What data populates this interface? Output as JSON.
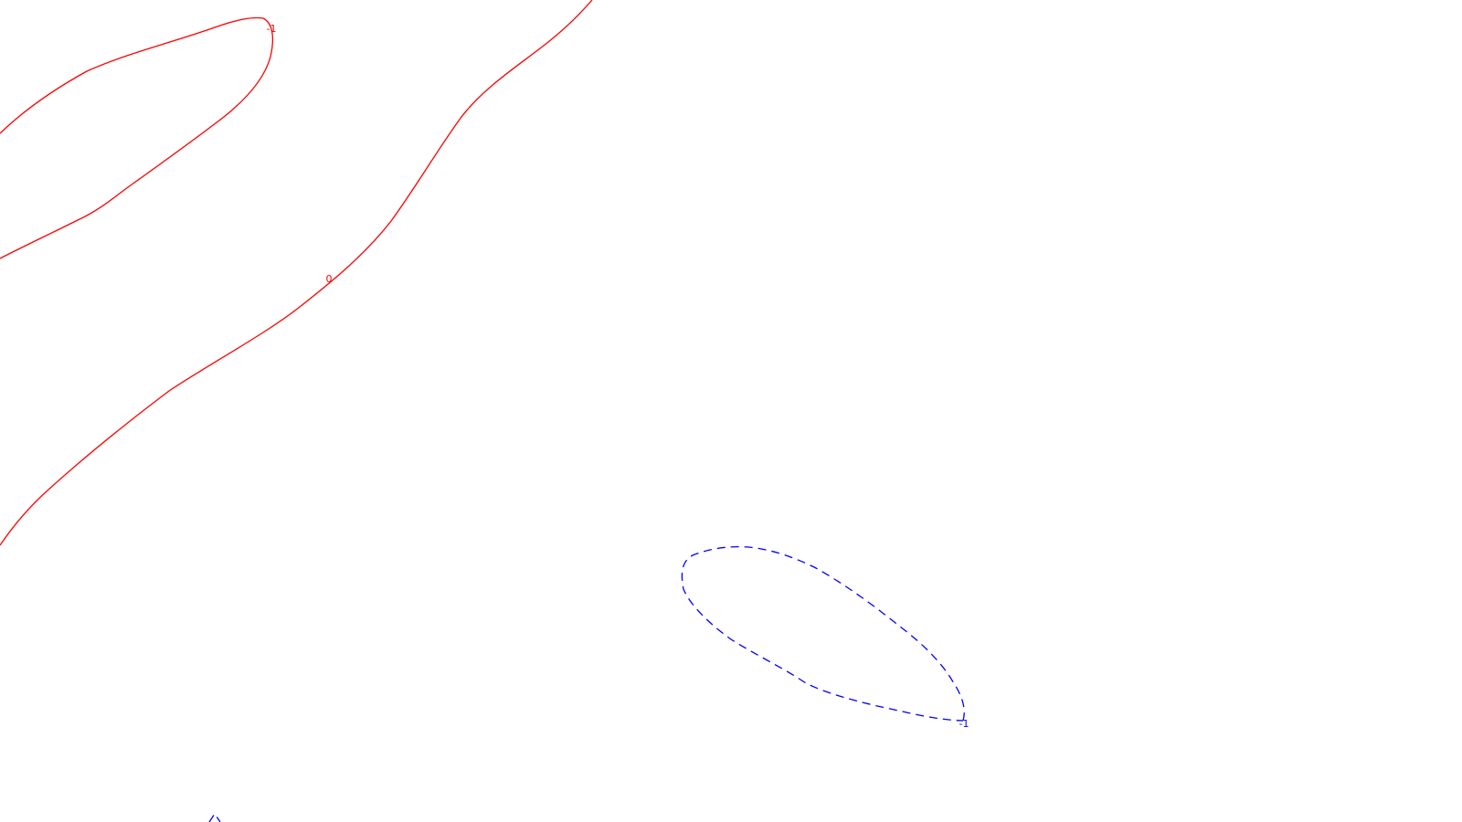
{
  "chart_data": {
    "type": "contour",
    "title": "",
    "xlabel": "",
    "ylabel": "",
    "legend": "none",
    "grid": false,
    "levels": [
      {
        "value": -1,
        "label": "-1",
        "color": "#ff0000",
        "style": "solid"
      },
      {
        "value": 0,
        "label": "0",
        "color": "#ff0000",
        "style": "solid"
      },
      {
        "value": -1,
        "label": "-1",
        "color": "#0000ff",
        "style": "dashed"
      },
      {
        "value": null,
        "label": "",
        "color": "#0000ff",
        "style": "dashed"
      }
    ]
  }
}
